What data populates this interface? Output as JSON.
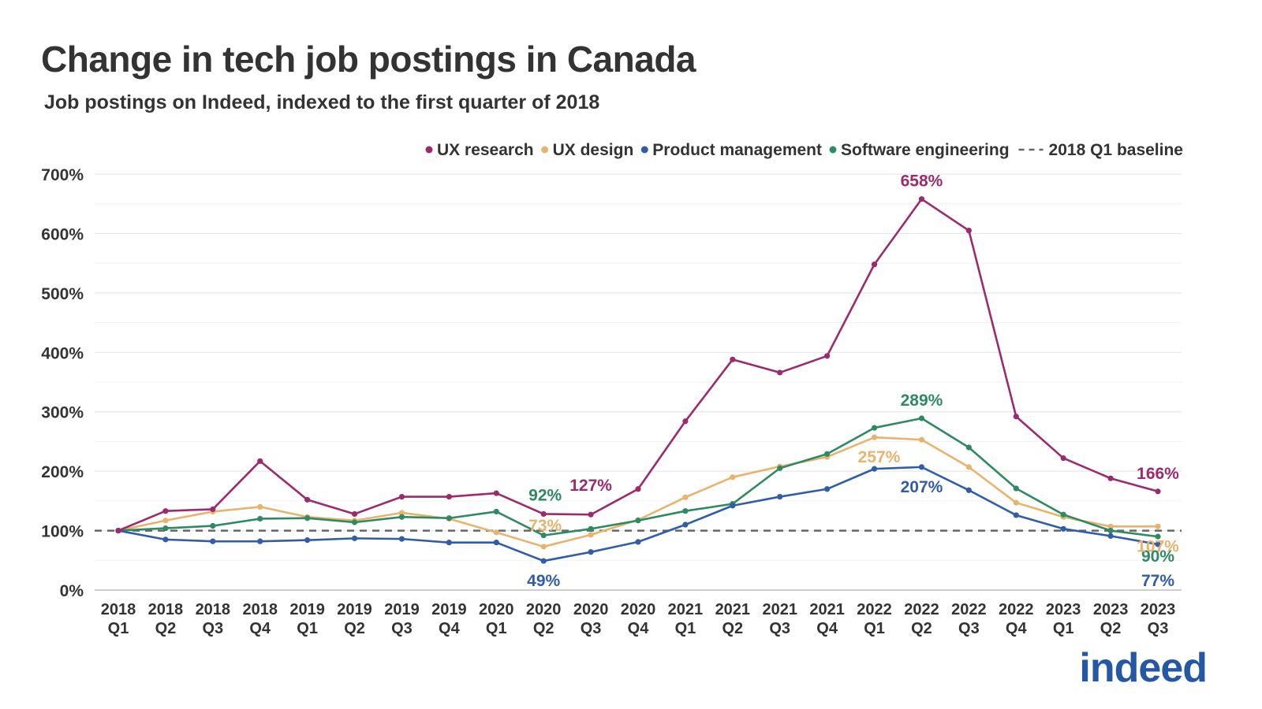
{
  "title": "Change in tech job postings in Canada",
  "subtitle": "Job postings on Indeed, indexed to the first quarter of 2018",
  "logo_text": "indeed",
  "chart_data": {
    "type": "line",
    "y_unit": "%",
    "ylim": [
      0,
      700
    ],
    "yticks": [
      0,
      100,
      200,
      300,
      400,
      500,
      600,
      700
    ],
    "grid": true,
    "legend_position": "top-right",
    "categories": [
      [
        "2018",
        "Q1"
      ],
      [
        "2018",
        "Q2"
      ],
      [
        "2018",
        "Q3"
      ],
      [
        "2018",
        "Q4"
      ],
      [
        "2019",
        "Q1"
      ],
      [
        "2019",
        "Q2"
      ],
      [
        "2019",
        "Q3"
      ],
      [
        "2019",
        "Q4"
      ],
      [
        "2020",
        "Q1"
      ],
      [
        "2020",
        "Q2"
      ],
      [
        "2020",
        "Q3"
      ],
      [
        "2020",
        "Q4"
      ],
      [
        "2021",
        "Q1"
      ],
      [
        "2021",
        "Q2"
      ],
      [
        "2021",
        "Q3"
      ],
      [
        "2021",
        "Q4"
      ],
      [
        "2022",
        "Q1"
      ],
      [
        "2022",
        "Q2"
      ],
      [
        "2022",
        "Q3"
      ],
      [
        "2022",
        "Q4"
      ],
      [
        "2023",
        "Q1"
      ],
      [
        "2023",
        "Q2"
      ],
      [
        "2023",
        "Q3"
      ]
    ],
    "series": [
      {
        "name": "UX research",
        "color": "#9c2b6e",
        "values": [
          100,
          133,
          136,
          217,
          152,
          128,
          157,
          157,
          163,
          128,
          127,
          170,
          284,
          388,
          366,
          394,
          548,
          658,
          605,
          292,
          222,
          188,
          166
        ]
      },
      {
        "name": "UX design",
        "color": "#e8b46d",
        "values": [
          100,
          117,
          132,
          140,
          123,
          117,
          130,
          120,
          97,
          73,
          93,
          118,
          156,
          190,
          208,
          224,
          257,
          253,
          207,
          147,
          123,
          107,
          107
        ]
      },
      {
        "name": "Product management",
        "color": "#2f5da8",
        "values": [
          100,
          85,
          82,
          82,
          84,
          87,
          86,
          80,
          80,
          49,
          64,
          81,
          110,
          142,
          157,
          170,
          204,
          207,
          168,
          126,
          103,
          91,
          77
        ]
      },
      {
        "name": "Software engineering",
        "color": "#2e8a62",
        "values": [
          100,
          104,
          108,
          120,
          121,
          114,
          123,
          121,
          132,
          92,
          103,
          117,
          133,
          145,
          205,
          229,
          273,
          289,
          240,
          171,
          127,
          100,
          90
        ]
      }
    ],
    "baseline": {
      "name": "2018 Q1 baseline",
      "value": 100,
      "color": "#666666"
    },
    "annotations": [
      {
        "series": 0,
        "index": 17,
        "text": "658%",
        "pos": "above"
      },
      {
        "series": 0,
        "index": 10,
        "text": "127%",
        "pos": "above-right"
      },
      {
        "series": 0,
        "index": 22,
        "text": "166%",
        "pos": "above"
      },
      {
        "series": 3,
        "index": 17,
        "text": "289%",
        "pos": "above"
      },
      {
        "series": 3,
        "index": 9,
        "text": "92%",
        "pos": "above-up"
      },
      {
        "series": 3,
        "index": 22,
        "text": "90%",
        "pos": "below"
      },
      {
        "series": 1,
        "index": 9,
        "text": "73%",
        "pos": "above-mid"
      },
      {
        "series": 1,
        "index": 16,
        "text": "257%",
        "pos": "below-right"
      },
      {
        "series": 1,
        "index": 22,
        "text": "107%",
        "pos": "below"
      },
      {
        "series": 2,
        "index": 9,
        "text": "49%",
        "pos": "below"
      },
      {
        "series": 2,
        "index": 17,
        "text": "207%",
        "pos": "below"
      },
      {
        "series": 2,
        "index": 22,
        "text": "77%",
        "pos": "below-far"
      }
    ]
  }
}
